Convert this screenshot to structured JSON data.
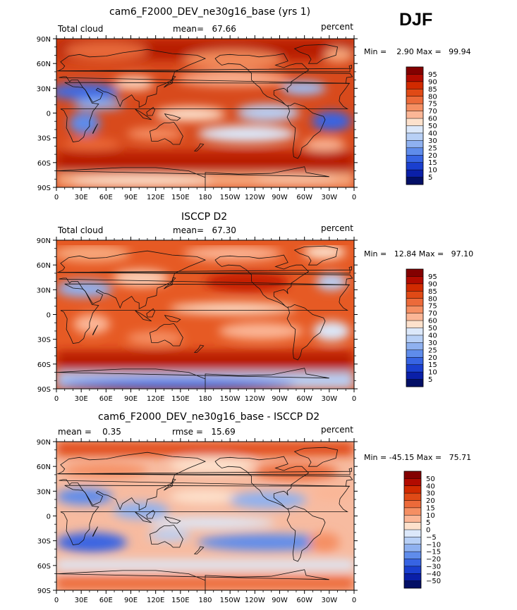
{
  "season": "DJF",
  "panels": [
    {
      "title": "cam6_F2000_DEV_ne30g16_base (yrs 1)",
      "left_label": "Total cloud",
      "center_label": "mean=   67.66",
      "right_label": "percent",
      "minmax": "Min =    2.90 Max =   99.94",
      "colorbar_levels": [
        "95",
        "90",
        "85",
        "80",
        "75",
        "70",
        "60",
        "50",
        "40",
        "30",
        "25",
        "20",
        "15",
        "10",
        "5"
      ],
      "colors": [
        "#830000",
        "#b20b00",
        "#d12a00",
        "#e04a16",
        "#ec6a3a",
        "#f58f63",
        "#fbb696",
        "#fde1cc",
        "#dce8fa",
        "#b8d0f6",
        "#8fb1f0",
        "#5f8ceb",
        "#3764e3",
        "#1a3fcf",
        "#0a1fa8",
        "#030f66"
      ]
    },
    {
      "title": "ISCCP D2",
      "left_label": "Total cloud",
      "center_label": "mean=   67.30",
      "right_label": "percent",
      "minmax": "Min =   12.84 Max =   97.10",
      "colorbar_levels": [
        "95",
        "90",
        "85",
        "80",
        "75",
        "70",
        "60",
        "50",
        "40",
        "30",
        "25",
        "20",
        "15",
        "10",
        "5"
      ],
      "colors": [
        "#830000",
        "#b20b00",
        "#d12a00",
        "#e04a16",
        "#ec6a3a",
        "#f58f63",
        "#fbb696",
        "#fde1cc",
        "#dce8fa",
        "#b8d0f6",
        "#8fb1f0",
        "#5f8ceb",
        "#3764e3",
        "#1a3fcf",
        "#0a1fa8",
        "#030f66"
      ]
    },
    {
      "title": "cam6_F2000_DEV_ne30g16_base - ISCCP D2",
      "left_label": "mean =    0.35",
      "center_label": "rmse =   15.69",
      "right_label": "percent",
      "minmax": "Min = -45.15 Max =   75.71",
      "colorbar_levels": [
        "50",
        "40",
        "30",
        "20",
        "15",
        "10",
        "5",
        "0",
        "−5",
        "−10",
        "−15",
        "−20",
        "−30",
        "−40",
        "−50"
      ],
      "colors": [
        "#830000",
        "#b20b00",
        "#d12a00",
        "#e04a16",
        "#ec6a3a",
        "#f58f63",
        "#fbb696",
        "#fde1cc",
        "#dce8fa",
        "#b8d0f6",
        "#8fb1f0",
        "#5f8ceb",
        "#3764e3",
        "#1a3fcf",
        "#0a1fa8",
        "#030f66"
      ]
    }
  ],
  "lat_ticks": [
    "90N",
    "60N",
    "30N",
    "0",
    "30S",
    "60S",
    "90S"
  ],
  "lon_ticks": [
    "0",
    "30E",
    "60E",
    "90E",
    "120E",
    "150E",
    "180",
    "150W",
    "120W",
    "90W",
    "60W",
    "30W",
    "0"
  ]
}
